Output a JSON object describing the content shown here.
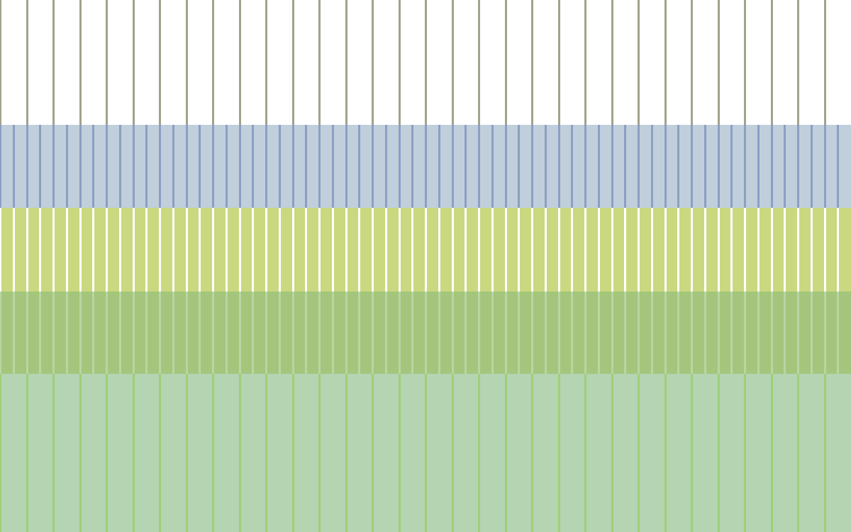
{
  "bands": [
    {
      "id": "white-band",
      "background": "#ffffff",
      "line_color": "#a3a28b",
      "line_count": 32
    },
    {
      "id": "steel-blue-band",
      "background": "#c0cfdb",
      "line_color": "#8c9fc3",
      "line_count": 64
    },
    {
      "id": "lime-band",
      "background": "#cad87f",
      "line_color": "#ffffff",
      "line_count": 64
    },
    {
      "id": "olive-green-band",
      "background": "#a4c67c",
      "line_color": "#b9d5a2",
      "line_count": 64
    },
    {
      "id": "sage-green-band",
      "background": "#b4d4b2",
      "line_color": "#9fcf77",
      "line_count": 32
    }
  ]
}
